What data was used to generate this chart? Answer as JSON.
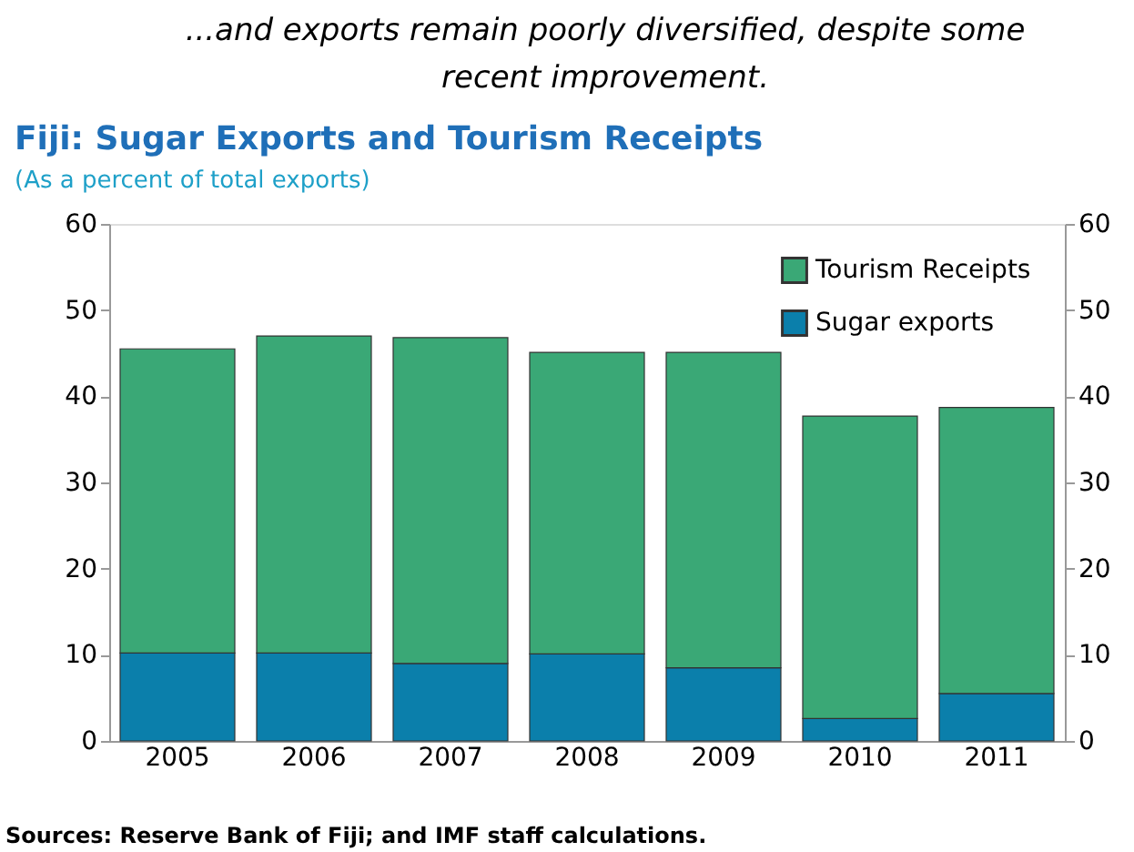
{
  "chart_data": {
    "type": "bar",
    "stacked": true,
    "title": "Fiji: Sugar Exports and Tourism Receipts",
    "subtitle": "(As a percent of total exports)",
    "annotations": [
      "...and exports remain poorly diversified, despite some recent improvement.",
      "Sources: Reserve Bank of Fiji; and IMF staff calculations."
    ],
    "categories": [
      "2005",
      "2006",
      "2007",
      "2008",
      "2009",
      "2010",
      "2011"
    ],
    "series": [
      {
        "name": "Sugar exports",
        "color": "#0b7fab",
        "values": [
          10.2,
          10.2,
          9.0,
          10.1,
          8.5,
          2.6,
          5.5
        ]
      },
      {
        "name": "Tourism Receipts",
        "color": "#3aa876",
        "values": [
          35.3,
          36.8,
          37.8,
          35.0,
          36.6,
          35.1,
          33.2
        ]
      }
    ],
    "ylim": [
      0,
      60
    ],
    "yticks": [
      0,
      10,
      20,
      30,
      40,
      50,
      60
    ],
    "y2lim": [
      0,
      60
    ],
    "y2ticks": [
      0,
      10,
      20,
      30,
      40,
      50,
      60
    ],
    "legend": "top right",
    "grid": false
  }
}
